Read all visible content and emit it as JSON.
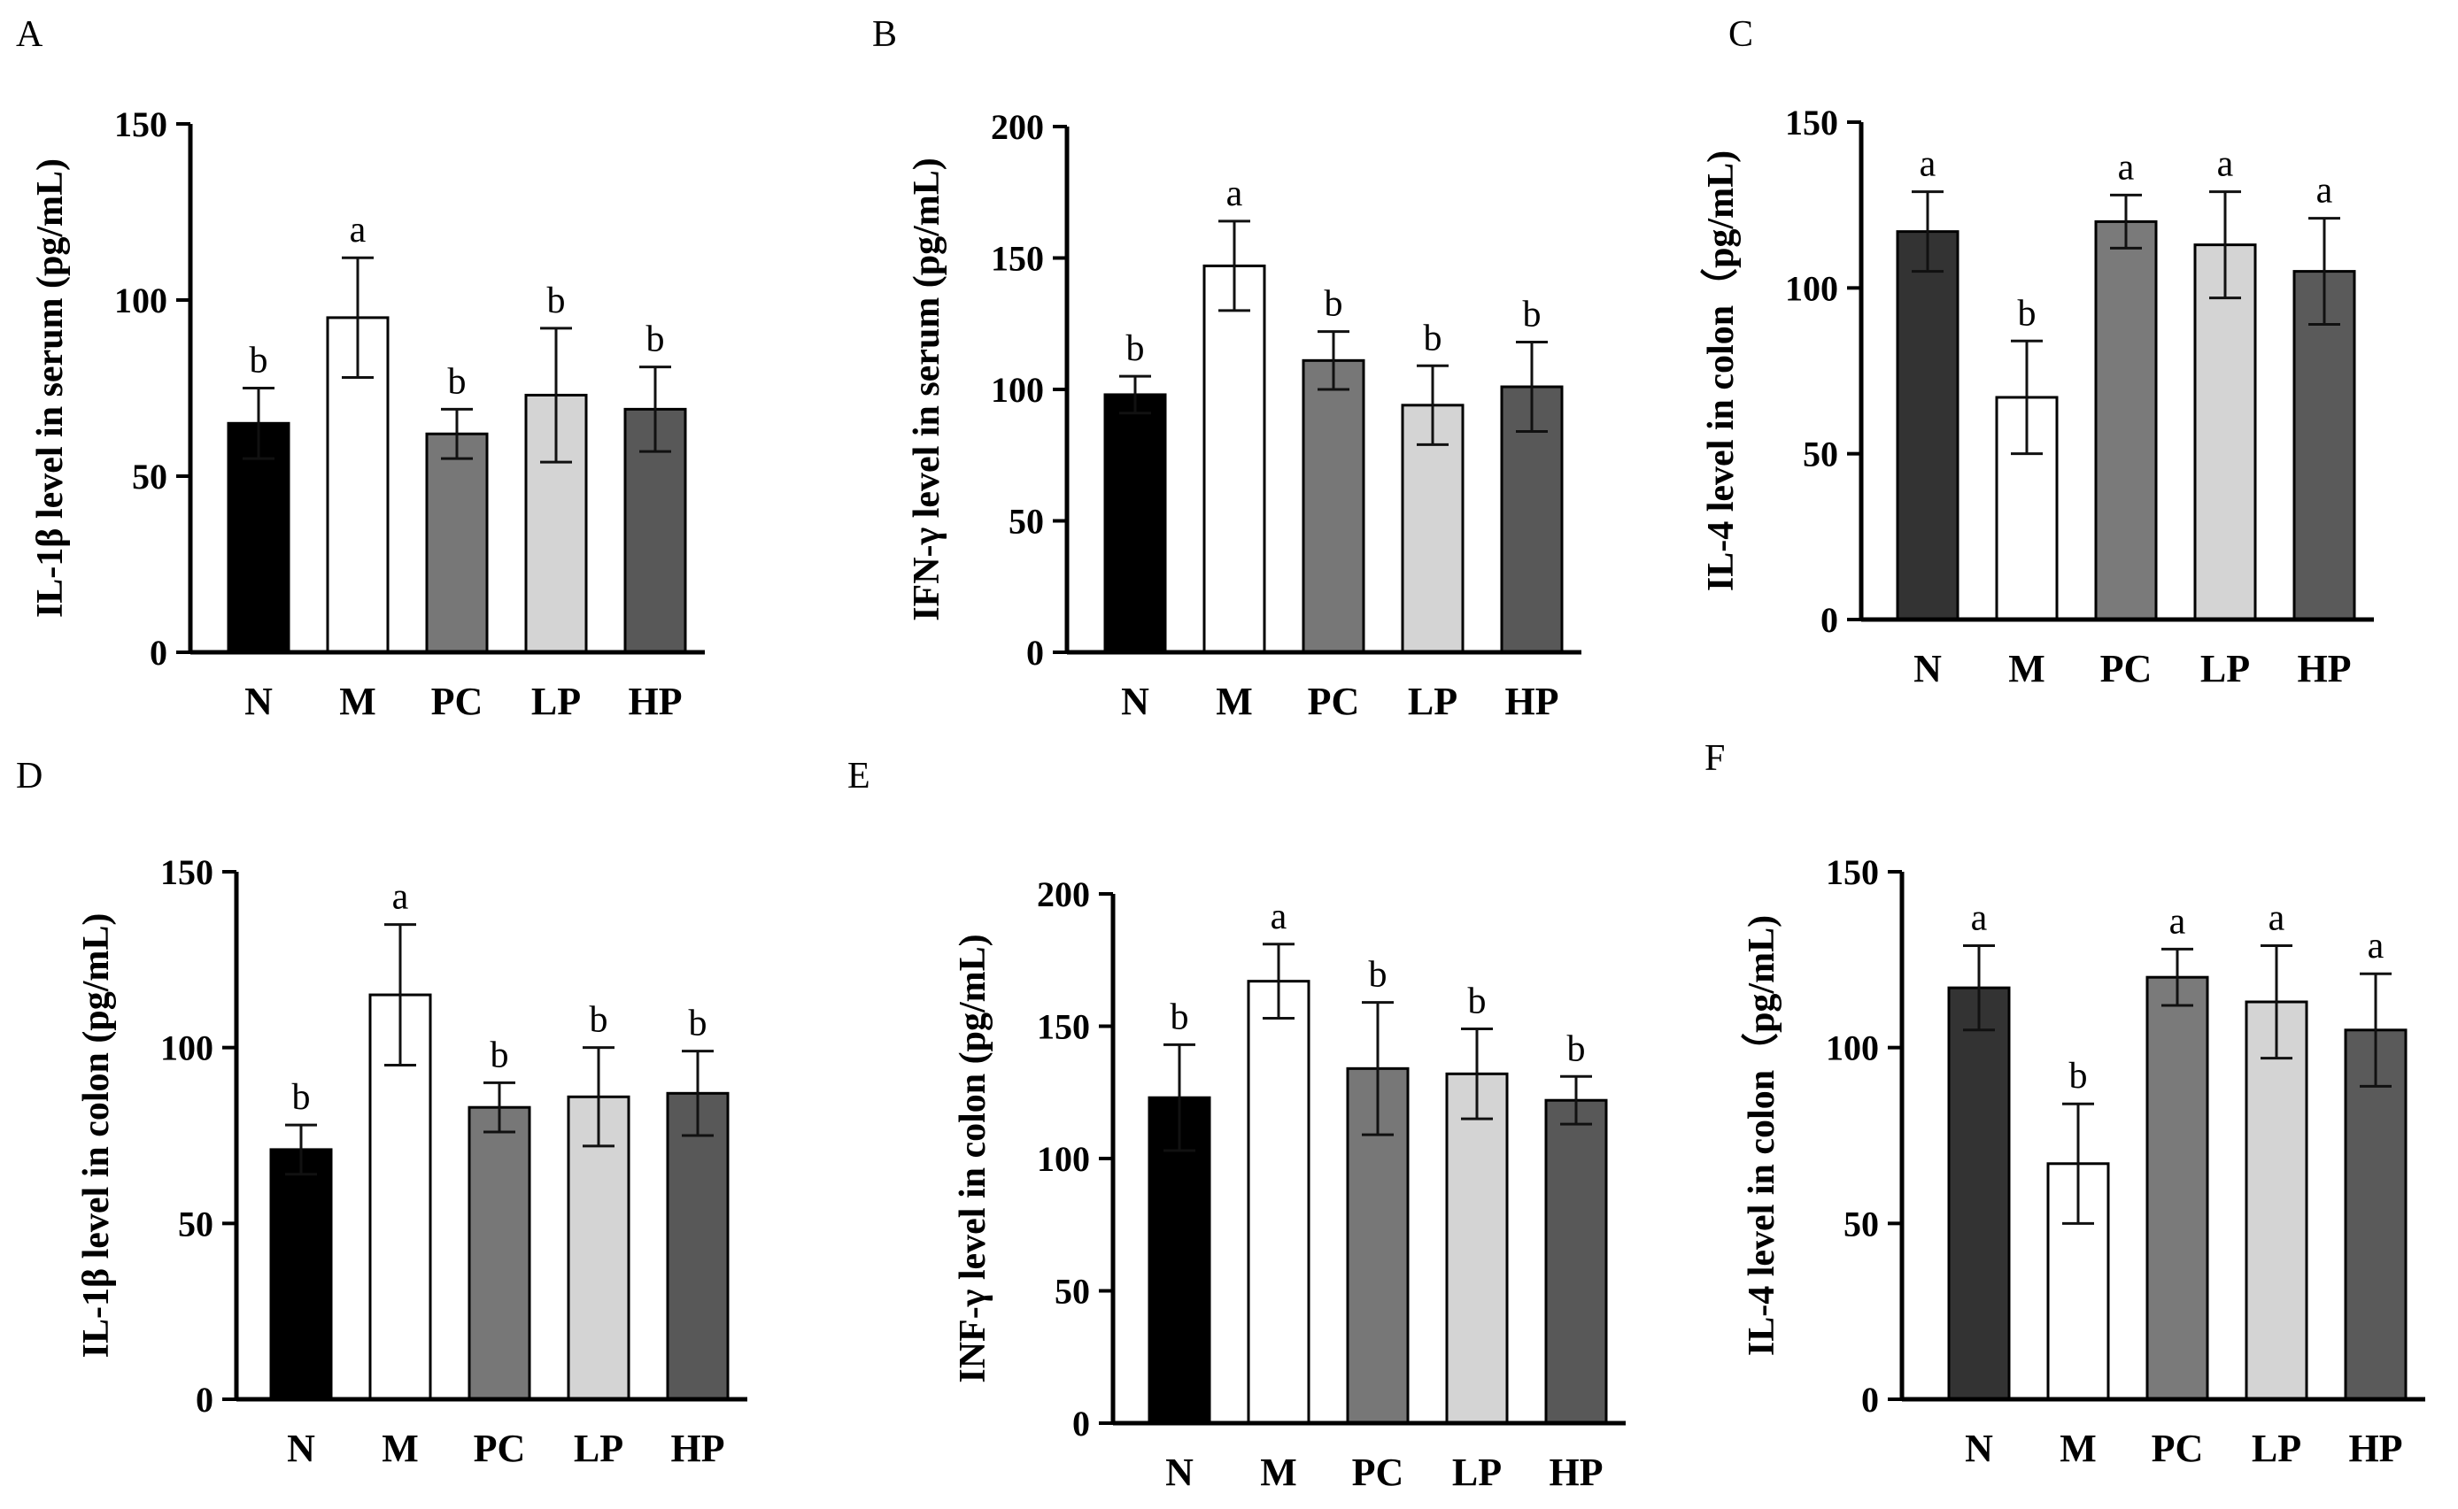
{
  "chart_data": [
    {
      "panel": "A",
      "type": "bar",
      "categories": [
        "N",
        "M",
        "PC",
        "LP",
        "HP"
      ],
      "values": [
        65,
        95,
        62,
        73,
        69
      ],
      "errors": [
        10,
        17,
        7,
        19,
        12
      ],
      "significance": [
        "b",
        "a",
        "b",
        "b",
        "b"
      ],
      "ylabel": "IL-1β level in serum (pg/mL)",
      "ylim": [
        0,
        150
      ],
      "yticks": [
        "0",
        "50",
        "100",
        "150"
      ]
    },
    {
      "panel": "B",
      "type": "bar",
      "categories": [
        "N",
        "M",
        "PC",
        "LP",
        "HP"
      ],
      "values": [
        98,
        147,
        111,
        94,
        101
      ],
      "errors": [
        7,
        17,
        11,
        15,
        17
      ],
      "significance": [
        "b",
        "a",
        "b",
        "b",
        "b"
      ],
      "ylabel": "IFN-γ level in serum (pg/mL)",
      "ylim": [
        0,
        200
      ],
      "yticks": [
        "0",
        "50",
        "100",
        "150",
        "200"
      ]
    },
    {
      "panel": "C",
      "type": "bar",
      "categories": [
        "N",
        "M",
        "PC",
        "LP",
        "HP"
      ],
      "values": [
        117,
        67,
        120,
        113,
        105
      ],
      "errors": [
        12,
        17,
        8,
        16,
        16
      ],
      "significance": [
        "a",
        "b",
        "a",
        "a",
        "a"
      ],
      "ylabel": "IL-4 level in colon（pg/mL)",
      "ylim": [
        0,
        150
      ],
      "yticks": [
        "0",
        "50",
        "100",
        "150"
      ]
    },
    {
      "panel": "D",
      "type": "bar",
      "categories": [
        "N",
        "M",
        "PC",
        "LP",
        "HP"
      ],
      "values": [
        71,
        115,
        83,
        86,
        87
      ],
      "errors": [
        7,
        20,
        7,
        14,
        12
      ],
      "significance": [
        "b",
        "a",
        "b",
        "b",
        "b"
      ],
      "ylabel": "IL-1β level in colon (pg/mL)",
      "ylim": [
        0,
        150
      ],
      "yticks": [
        "0",
        "50",
        "100",
        "150"
      ]
    },
    {
      "panel": "E",
      "type": "bar",
      "categories": [
        "N",
        "M",
        "PC",
        "LP",
        "HP"
      ],
      "values": [
        123,
        167,
        134,
        132,
        122
      ],
      "errors": [
        20,
        14,
        25,
        17,
        9
      ],
      "significance": [
        "b",
        "a",
        "b",
        "b",
        "b"
      ],
      "ylabel": "INF-γ level in colon (pg/mL)",
      "ylim": [
        0,
        200
      ],
      "yticks": [
        "0",
        "50",
        "100",
        "150",
        "200"
      ]
    },
    {
      "panel": "F",
      "type": "bar",
      "categories": [
        "N",
        "M",
        "PC",
        "LP",
        "HP"
      ],
      "values": [
        117,
        67,
        120,
        113,
        105
      ],
      "errors": [
        12,
        17,
        8,
        16,
        16
      ],
      "significance": [
        "a",
        "b",
        "a",
        "a",
        "a"
      ],
      "ylabel": "IL-4 level in colon（pg/mL)",
      "ylim": [
        0,
        150
      ],
      "yticks": [
        "0",
        "50",
        "100",
        "150"
      ]
    }
  ],
  "colors": {
    "A": [
      "#000000",
      "#ffffff",
      "#777777",
      "#d4d4d4",
      "#585858"
    ],
    "B": [
      "#000000",
      "#ffffff",
      "#777777",
      "#d4d4d4",
      "#585858"
    ],
    "C": [
      "#333333",
      "#ffffff",
      "#7a7a7a",
      "#d4d4d4",
      "#5a5a5a"
    ],
    "D": [
      "#000000",
      "#ffffff",
      "#777777",
      "#d4d4d4",
      "#585858"
    ],
    "E": [
      "#000000",
      "#ffffff",
      "#777777",
      "#d4d4d4",
      "#585858"
    ],
    "F": [
      "#333333",
      "#ffffff",
      "#7a7a7a",
      "#d4d4d4",
      "#5a5a5a"
    ]
  }
}
